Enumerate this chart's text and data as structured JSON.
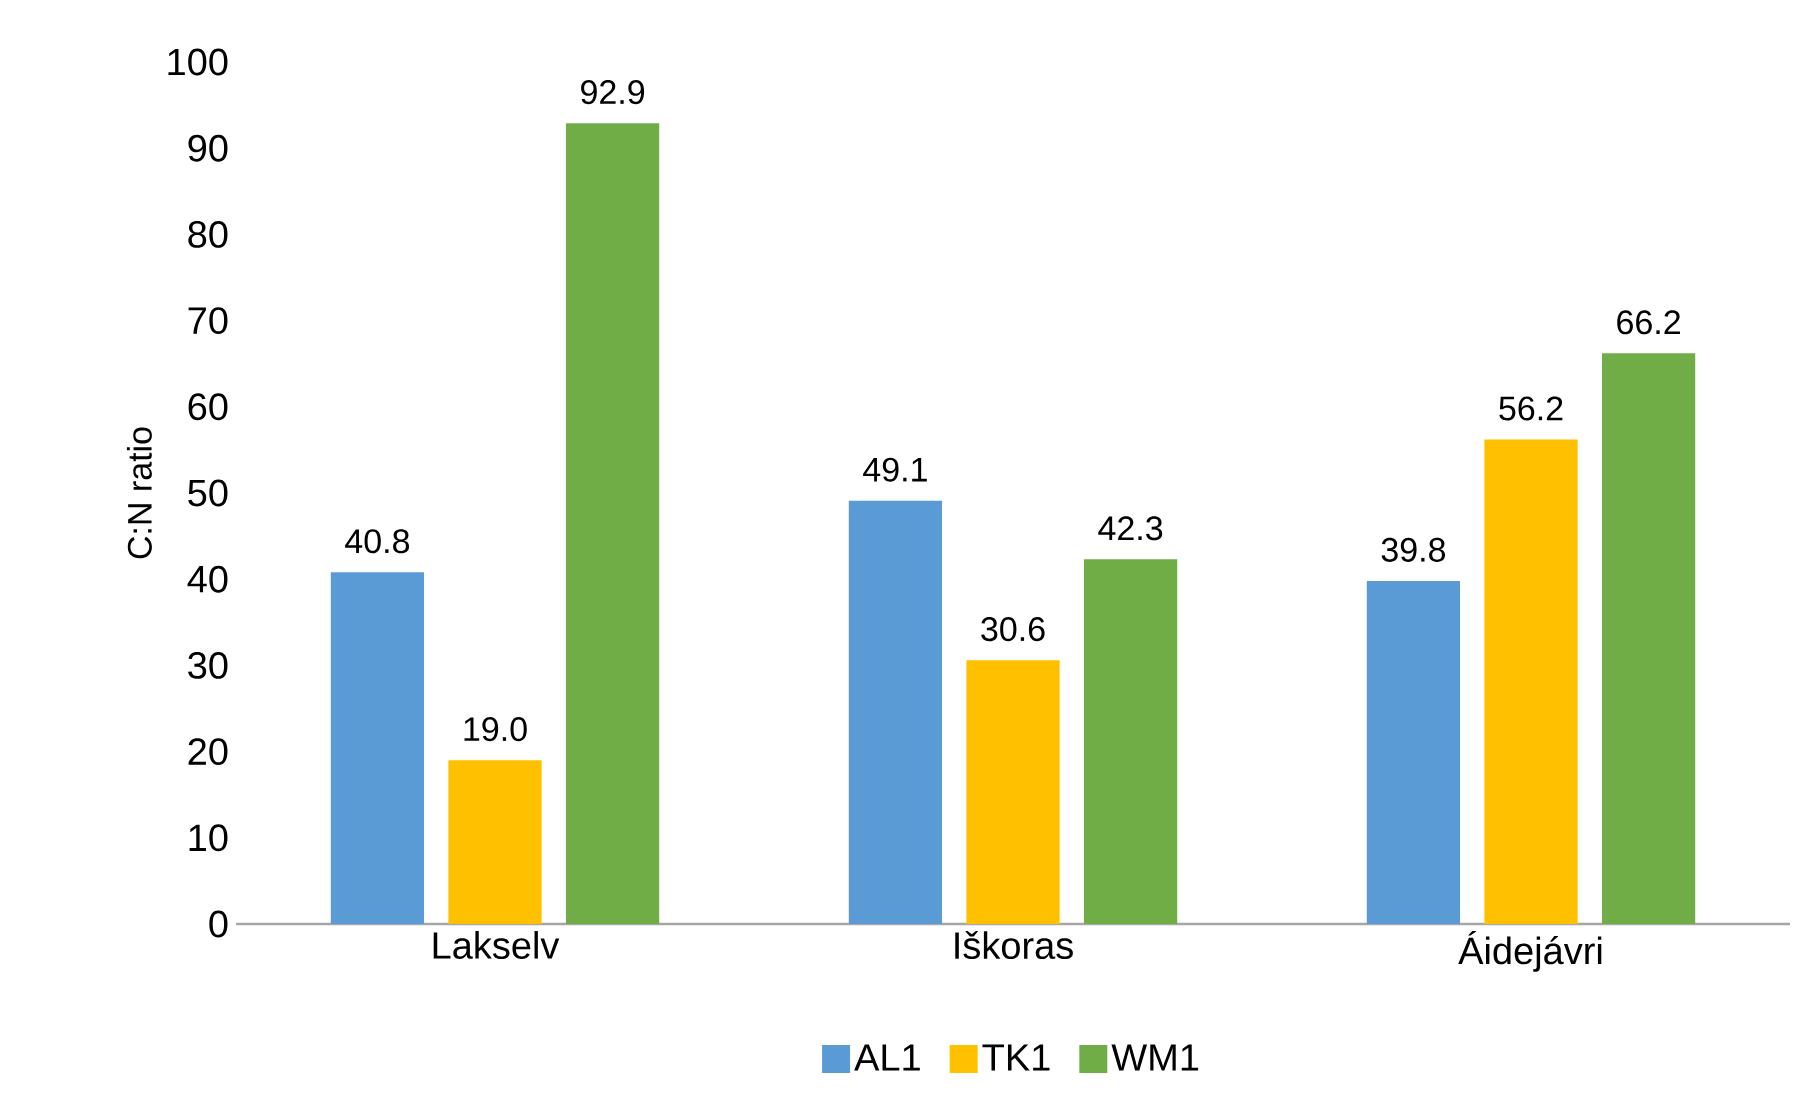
{
  "chart_data": {
    "type": "bar",
    "ylabel": "C:N ratio",
    "categories": [
      "Lakselv",
      "Iškoras",
      "Áidejávri"
    ],
    "series": [
      {
        "name": "AL1",
        "color": "#5b9bd5",
        "values": [
          40.8,
          49.1,
          39.8
        ],
        "value_labels": [
          "40.8",
          "49.1",
          "39.8"
        ]
      },
      {
        "name": "TK1",
        "color": "#ffc000",
        "values": [
          19.0,
          30.6,
          56.2
        ],
        "value_labels": [
          "19.0",
          "30.6",
          "56.2"
        ]
      },
      {
        "name": "WM1",
        "color": "#70ad47",
        "values": [
          92.9,
          42.3,
          66.2
        ],
        "value_labels": [
          "92.9",
          "42.3",
          "66.2"
        ]
      }
    ],
    "ylim": [
      0,
      100
    ],
    "yticks": [
      0,
      10,
      20,
      30,
      40,
      50,
      60,
      70,
      80,
      90,
      100
    ],
    "grid": false,
    "legend": "bottom"
  }
}
